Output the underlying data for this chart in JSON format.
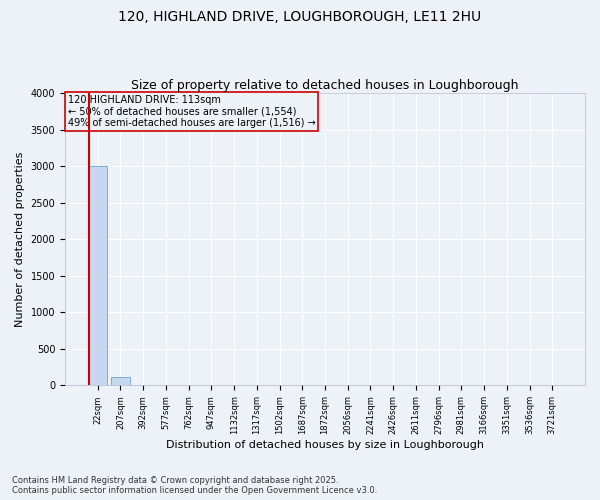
{
  "title_line1": "120, HIGHLAND DRIVE, LOUGHBOROUGH, LE11 2HU",
  "title_line2": "Size of property relative to detached houses in Loughborough",
  "xlabel": "Distribution of detached houses by size in Loughborough",
  "ylabel": "Number of detached properties",
  "bar_labels": [
    "22sqm",
    "207sqm",
    "392sqm",
    "577sqm",
    "762sqm",
    "947sqm",
    "1132sqm",
    "1317sqm",
    "1502sqm",
    "1687sqm",
    "1872sqm",
    "2056sqm",
    "2241sqm",
    "2426sqm",
    "2611sqm",
    "2796sqm",
    "2981sqm",
    "3166sqm",
    "3351sqm",
    "3536sqm",
    "3721sqm"
  ],
  "bar_values": [
    3000,
    120,
    5,
    2,
    1,
    1,
    0,
    0,
    0,
    0,
    0,
    0,
    0,
    0,
    0,
    0,
    0,
    0,
    0,
    0,
    0
  ],
  "bar_color": "#c5d8f0",
  "bar_edgecolor": "#7bafd4",
  "ylim": [
    0,
    4000
  ],
  "yticks": [
    0,
    500,
    1000,
    1500,
    2000,
    2500,
    3000,
    3500,
    4000
  ],
  "property_line_x": -0.4,
  "property_line_color": "#cc0000",
  "annotation_title": "120 HIGHLAND DRIVE: 113sqm",
  "annotation_line2": "← 50% of detached houses are smaller (1,554)",
  "annotation_line3": "49% of semi-detached houses are larger (1,516) →",
  "footer_line1": "Contains HM Land Registry data © Crown copyright and database right 2025.",
  "footer_line2": "Contains public sector information licensed under the Open Government Licence v3.0.",
  "bg_color": "#edf2f9",
  "grid_color": "#ffffff",
  "title_fontsize": 10,
  "subtitle_fontsize": 9,
  "ylabel_fontsize": 8,
  "xlabel_fontsize": 8,
  "tick_fontsize": 6,
  "footer_fontsize": 6,
  "annot_fontsize": 7
}
